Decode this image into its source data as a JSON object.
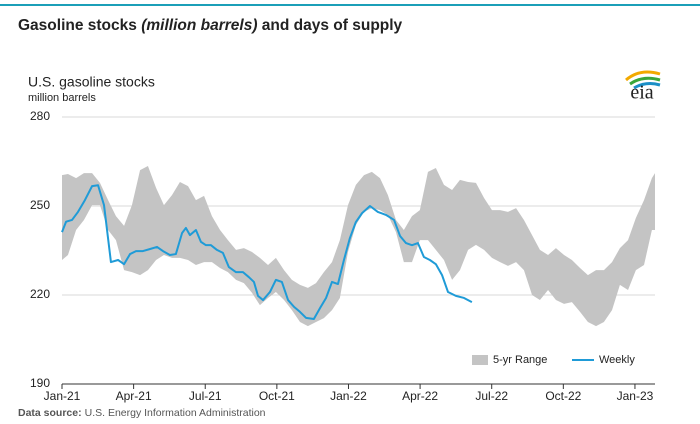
{
  "chart_data": {
    "type": "line",
    "title": [
      "Gasoline stocks ",
      "(million barrels)",
      " and days of supply"
    ],
    "subtitle": "U.S. gasoline stocks",
    "ylabel": "million barrels",
    "logo": "eia",
    "source_label": "Data source:",
    "source": "U.S. Energy Information Administration",
    "xlim": [
      0,
      24.84
    ],
    "xticks": [
      {
        "value": 0,
        "label": "Jan-21"
      },
      {
        "value": 3,
        "label": "Apr-21"
      },
      {
        "value": 6,
        "label": "Jul-21"
      },
      {
        "value": 9,
        "label": "Oct-21"
      },
      {
        "value": 12,
        "label": "Jan-22"
      },
      {
        "value": 15,
        "label": "Apr-22"
      },
      {
        "value": 18,
        "label": "Jul-22"
      },
      {
        "value": 21,
        "label": "Oct-22"
      },
      {
        "value": 24,
        "label": "Jan-23"
      }
    ],
    "ylim": [
      190,
      280
    ],
    "yticks": [
      190,
      220,
      250,
      280
    ],
    "grid": true,
    "legend": "bottom-right",
    "series": [
      {
        "name": "5-yr Range",
        "type": "range",
        "color": "#c4c4c4",
        "x": [
          0,
          0.25,
          0.59,
          0.92,
          1.26,
          1.59,
          1.93,
          2.26,
          2.6,
          2.93,
          3.27,
          3.6,
          3.94,
          4.27,
          4.61,
          4.94,
          5.28,
          5.61,
          5.95,
          6.28,
          6.62,
          6.95,
          7.29,
          7.62,
          7.96,
          8.29,
          8.63,
          8.96,
          9.3,
          9.63,
          9.97,
          10.3,
          10.64,
          10.97,
          11.31,
          11.64,
          11.98,
          12.31,
          12.65,
          12.98,
          13.32,
          13.65,
          13.99,
          14.32,
          14.66,
          14.99,
          15.33,
          15.66,
          16.0,
          16.34,
          16.67,
          17.01,
          17.34,
          17.68,
          18.01,
          18.35,
          18.68,
          19.02,
          19.35,
          19.69,
          20.02,
          20.36,
          20.69,
          21.03,
          21.36,
          21.7,
          22.03,
          22.37,
          22.7,
          23.04,
          23.37,
          23.71,
          24.04,
          24.38,
          24.71,
          24.84
        ],
        "high": [
          260.4,
          260.8,
          259.4,
          261.1,
          261.1,
          257.8,
          252.0,
          246.6,
          243.3,
          250.3,
          262.1,
          263.5,
          256.1,
          250.3,
          253.7,
          258.1,
          256.7,
          252.0,
          253.4,
          246.6,
          241.9,
          238.5,
          235.2,
          235.8,
          234.5,
          232.5,
          230.1,
          232.5,
          228.4,
          225.1,
          223.4,
          222.4,
          224.0,
          227.7,
          231.1,
          238.5,
          250.3,
          257.1,
          260.4,
          261.5,
          259.4,
          253.7,
          245.3,
          241.9,
          246.6,
          248.6,
          261.5,
          262.8,
          257.1,
          255.4,
          258.8,
          258.1,
          257.8,
          252.7,
          248.6,
          248.6,
          248.0,
          249.3,
          245.3,
          240.2,
          235.2,
          233.5,
          235.8,
          233.5,
          231.8,
          229.1,
          226.7,
          228.4,
          228.4,
          231.1,
          235.8,
          238.5,
          246.0,
          252.0,
          259.4,
          261.1
        ],
        "low": [
          231.8,
          233.5,
          241.9,
          245.3,
          250.3,
          250.3,
          241.9,
          238.5,
          228.4,
          227.7,
          226.7,
          228.4,
          231.8,
          233.5,
          232.5,
          232.5,
          231.8,
          230.1,
          231.1,
          231.1,
          229.1,
          227.7,
          225.1,
          224.0,
          220.7,
          216.6,
          219.0,
          221.0,
          218.3,
          214.9,
          210.9,
          209.5,
          210.9,
          212.2,
          214.9,
          219.0,
          234.5,
          243.6,
          248.0,
          249.3,
          248.6,
          247.0,
          241.2,
          231.1,
          231.1,
          238.5,
          238.5,
          235.2,
          231.8,
          225.1,
          228.4,
          235.2,
          236.9,
          235.2,
          232.5,
          231.1,
          229.8,
          231.1,
          228.4,
          220.0,
          218.3,
          221.7,
          218.3,
          217.0,
          217.6,
          214.3,
          210.9,
          209.5,
          210.9,
          214.9,
          223.4,
          221.7,
          228.4,
          230.1,
          241.9,
          241.9
        ]
      },
      {
        "name": "Weekly",
        "color": "#1f9bd7",
        "x": [
          0,
          0.17,
          0.42,
          0.67,
          0.96,
          1.26,
          1.51,
          1.76,
          2.05,
          2.35,
          2.6,
          2.85,
          3.1,
          3.39,
          3.69,
          3.98,
          4.23,
          4.52,
          4.77,
          5.03,
          5.19,
          5.36,
          5.61,
          5.82,
          6.03,
          6.24,
          6.49,
          6.74,
          6.99,
          7.29,
          7.58,
          7.83,
          8.04,
          8.21,
          8.42,
          8.71,
          8.96,
          9.21,
          9.47,
          9.72,
          9.97,
          10.22,
          10.55,
          10.81,
          11.06,
          11.31,
          11.56,
          11.81,
          12.06,
          12.31,
          12.57,
          12.9,
          13.23,
          13.57,
          13.91,
          14.16,
          14.41,
          14.66,
          14.91,
          15.16,
          15.41,
          15.66,
          15.92,
          16.17,
          16.5,
          16.84,
          17.17
        ],
        "values": [
          241.2,
          244.7,
          245.3,
          248.0,
          252.0,
          256.7,
          257.0,
          250.3,
          231.1,
          231.8,
          230.4,
          233.8,
          234.8,
          234.8,
          235.5,
          236.2,
          234.8,
          233.5,
          233.8,
          240.9,
          242.6,
          240.2,
          241.9,
          237.9,
          236.8,
          236.8,
          235.2,
          234.2,
          229.4,
          227.7,
          227.7,
          226.0,
          224.4,
          219.7,
          218.3,
          221.0,
          225.1,
          224.4,
          218.3,
          216.0,
          214.3,
          212.3,
          211.9,
          215.6,
          219.0,
          224.4,
          223.7,
          231.8,
          239.2,
          244.6,
          247.6,
          250.0,
          248.0,
          247.0,
          245.3,
          239.9,
          237.5,
          236.8,
          237.5,
          232.8,
          231.8,
          230.4,
          226.7,
          221.0,
          219.7,
          219.0,
          217.6
        ]
      }
    ]
  }
}
